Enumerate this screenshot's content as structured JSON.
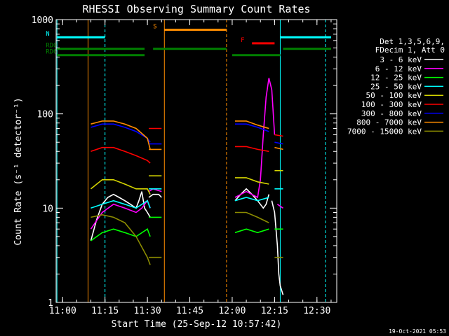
{
  "chart_data": {
    "type": "line",
    "title": "RHESSI Observing Summary Count Rates",
    "xlabel": "Start Time (25-Sep-12 10:57:42)",
    "ylabel": "Count Rate (s⁻¹ detector⁻¹)",
    "yscale": "log",
    "ylim": [
      1,
      1000
    ],
    "xlim": [
      "10:57:42",
      "12:37:00"
    ],
    "x_ticks": [
      "11:00",
      "11:15",
      "11:30",
      "11:45",
      "12:00",
      "12:15",
      "12:30"
    ],
    "y_ticks": [
      "1",
      "10",
      "100",
      "1000"
    ],
    "grid": false,
    "legend_position": "right",
    "legend_header": [
      "Det 1,3,5,6,9,",
      "FDecim 1, Att 0"
    ],
    "footer_date": "19-Oct-2021 05:53",
    "series": [
      {
        "name": "3 - 6 keV",
        "color": "#ffffff",
        "segments": [
          {
            "x": [
              "11:10",
              "11:12",
              "11:14",
              "11:16",
              "11:18",
              "11:20",
              "11:22",
              "11:24",
              "11:26",
              "11:27",
              "11:28",
              "11:29",
              "11:30",
              "11:31"
            ],
            "y": [
              4.5,
              7.5,
              11,
              13,
              14,
              13,
              12,
              11,
              10,
              12,
              15,
              10,
              9,
              8
            ]
          },
          {
            "x": [
              "11:30.5",
              "11:32",
              "11:34",
              "11:35"
            ],
            "y": [
              13,
              14,
              14,
              13
            ]
          },
          {
            "x": [
              "12:01",
              "12:03",
              "12:05",
              "12:07",
              "12:09",
              "12:11",
              "12:12",
              "12:13"
            ],
            "y": [
              12,
              14,
              16,
              14,
              12,
              10,
              11,
              14
            ]
          },
          {
            "x": [
              "12:14",
              "12:15",
              "12:16",
              "12:16.5",
              "12:17",
              "12:18"
            ],
            "y": [
              12,
              9,
              4,
              2,
              1.5,
              1.2
            ]
          }
        ]
      },
      {
        "name": "6 - 12 keV",
        "color": "#ff00ff",
        "segments": [
          {
            "x": [
              "11:10",
              "11:14",
              "11:18",
              "11:22",
              "11:26",
              "11:28",
              "11:30",
              "11:31"
            ],
            "y": [
              6,
              9,
              11,
              10,
              9,
              10,
              12,
              10
            ]
          },
          {
            "x": [
              "11:30.5",
              "11:32",
              "11:35"
            ],
            "y": [
              15,
              16,
              15
            ]
          },
          {
            "x": [
              "12:01",
              "12:05",
              "12:09",
              "12:10",
              "12:11",
              "12:12",
              "12:13",
              "12:14",
              "12:15"
            ],
            "y": [
              13,
              15,
              13,
              20,
              60,
              150,
              240,
              180,
              60
            ]
          },
          {
            "x": [
              "12:16",
              "12:18"
            ],
            "y": [
              11,
              10
            ]
          }
        ]
      },
      {
        "name": "12 - 25 keV",
        "color": "#00ff00",
        "segments": [
          {
            "x": [
              "11:10",
              "11:14",
              "11:18",
              "11:22",
              "11:26",
              "11:30",
              "11:31"
            ],
            "y": [
              4.5,
              5.5,
              6,
              5.5,
              5,
              6,
              5
            ]
          },
          {
            "x": [
              "11:30.5",
              "11:35"
            ],
            "y": [
              8,
              8
            ]
          },
          {
            "x": [
              "12:01",
              "12:05",
              "12:09",
              "12:13"
            ],
            "y": [
              5.5,
              6,
              5.5,
              6
            ]
          },
          {
            "x": [
              "12:15",
              "12:18"
            ],
            "y": [
              6,
              6
            ]
          }
        ]
      },
      {
        "name": "25 - 50 keV",
        "color": "#00ffff",
        "segments": [
          {
            "x": [
              "11:10",
              "11:14",
              "11:18",
              "11:22",
              "11:26",
              "11:30",
              "11:31"
            ],
            "y": [
              10,
              11,
              12,
              11,
              10,
              12,
              10
            ]
          },
          {
            "x": [
              "11:30.5",
              "11:35"
            ],
            "y": [
              16,
              16
            ]
          },
          {
            "x": [
              "12:01",
              "12:05",
              "12:09",
              "12:13"
            ],
            "y": [
              12,
              13,
              12,
              13
            ]
          },
          {
            "x": [
              "12:15",
              "12:18"
            ],
            "y": [
              16,
              16
            ]
          }
        ]
      },
      {
        "name": "50 - 100 keV",
        "color": "#d4d400",
        "segments": [
          {
            "x": [
              "11:10",
              "11:14",
              "11:18",
              "11:22",
              "11:26",
              "11:30",
              "11:31"
            ],
            "y": [
              16,
              20,
              20,
              18,
              16,
              16,
              14
            ]
          },
          {
            "x": [
              "11:30.5",
              "11:35"
            ],
            "y": [
              22,
              22
            ]
          },
          {
            "x": [
              "12:01",
              "12:05",
              "12:09",
              "12:13"
            ],
            "y": [
              21,
              21,
              19,
              18
            ]
          },
          {
            "x": [
              "12:15",
              "12:18"
            ],
            "y": [
              25,
              25
            ]
          }
        ]
      },
      {
        "name": "100 - 300 keV",
        "color": "#ff0000",
        "segments": [
          {
            "x": [
              "11:10",
              "11:14",
              "11:18",
              "11:22",
              "11:26",
              "11:30",
              "11:31"
            ],
            "y": [
              40,
              44,
              44,
              40,
              36,
              32,
              30
            ]
          },
          {
            "x": [
              "11:30.5",
              "11:35"
            ],
            "y": [
              70,
              70
            ]
          },
          {
            "x": [
              "12:01",
              "12:05",
              "12:09",
              "12:13"
            ],
            "y": [
              45,
              45,
              42,
              40
            ]
          },
          {
            "x": [
              "12:15",
              "12:18"
            ],
            "y": [
              60,
              58
            ]
          }
        ]
      },
      {
        "name": "300 - 800 keV",
        "color": "#0000ff",
        "segments": [
          {
            "x": [
              "11:10",
              "11:14",
              "11:18",
              "11:22",
              "11:26",
              "11:30",
              "11:31"
            ],
            "y": [
              72,
              78,
              78,
              72,
              65,
              55,
              50
            ]
          },
          {
            "x": [
              "11:30.5",
              "11:35"
            ],
            "y": [
              48,
              48
            ]
          },
          {
            "x": [
              "12:01",
              "12:05",
              "12:09",
              "12:13"
            ],
            "y": [
              78,
              78,
              72,
              65
            ]
          },
          {
            "x": [
              "12:15",
              "12:18"
            ],
            "y": [
              50,
              48
            ]
          }
        ]
      },
      {
        "name": "800 - 7000 keV",
        "color": "#ff8c00",
        "segments": [
          {
            "x": [
              "11:10",
              "11:14",
              "11:18",
              "11:22",
              "11:26",
              "11:30",
              "11:31"
            ],
            "y": [
              78,
              84,
              84,
              78,
              70,
              55,
              42
            ]
          },
          {
            "x": [
              "11:30.5",
              "11:35"
            ],
            "y": [
              42,
              42
            ]
          },
          {
            "x": [
              "12:01",
              "12:05",
              "12:09",
              "12:13"
            ],
            "y": [
              84,
              84,
              76,
              70
            ]
          },
          {
            "x": [
              "12:15",
              "12:18"
            ],
            "y": [
              44,
              42
            ]
          }
        ]
      },
      {
        "name": "7000 - 15000 keV",
        "color": "#8b8b00",
        "segments": [
          {
            "x": [
              "11:10",
              "11:14",
              "11:18",
              "11:22",
              "11:26",
              "11:30",
              "11:31"
            ],
            "y": [
              8,
              8.5,
              8,
              7,
              5,
              3,
              2.5
            ]
          },
          {
            "x": [
              "11:30.5",
              "11:35"
            ],
            "y": [
              3,
              3
            ]
          },
          {
            "x": [
              "12:01",
              "12:05",
              "12:09",
              "12:13"
            ],
            "y": [
              9,
              9,
              8,
              7
            ]
          },
          {
            "x": [
              "12:15",
              "12:18"
            ],
            "y": [
              3,
              3
            ]
          }
        ]
      }
    ],
    "flag_bars": [
      {
        "label": "N",
        "color": "#00ffff",
        "level": 650,
        "segments": [
          [
            "10:58",
            "11:15"
          ],
          [
            "12:17",
            "12:35"
          ]
        ]
      },
      {
        "label": "S",
        "color": "#ff8c00",
        "level": 780,
        "segments": [
          [
            "11:36",
            "11:58"
          ]
        ]
      },
      {
        "label": "F",
        "color": "#ff0000",
        "level": 560,
        "segments": [
          [
            "12:07",
            "12:15"
          ]
        ]
      },
      {
        "label": "RD0",
        "color": "#008000",
        "level": 490,
        "segments": [
          [
            "10:58",
            "11:29"
          ],
          [
            "11:32",
            "11:58"
          ],
          [
            "12:18",
            "12:35"
          ]
        ]
      },
      {
        "label": "RD6",
        "color": "#008000",
        "level": 420,
        "segments": [
          [
            "10:58",
            "11:29"
          ],
          [
            "12:00",
            "12:17"
          ]
        ]
      }
    ],
    "vlines": [
      {
        "x": "10:58",
        "color": "#00ffff",
        "style": "solid"
      },
      {
        "x": "11:15",
        "color": "#00ffff",
        "style": "dashed"
      },
      {
        "x": "11:09",
        "color": "#ff8c00",
        "style": "solid"
      },
      {
        "x": "11:36",
        "color": "#ff8c00",
        "style": "solid"
      },
      {
        "x": "11:58",
        "color": "#ff8c00",
        "style": "dashed"
      },
      {
        "x": "12:17",
        "color": "#00ffff",
        "style": "solid"
      },
      {
        "x": "12:33",
        "color": "#00ffff",
        "style": "dashed"
      }
    ]
  }
}
